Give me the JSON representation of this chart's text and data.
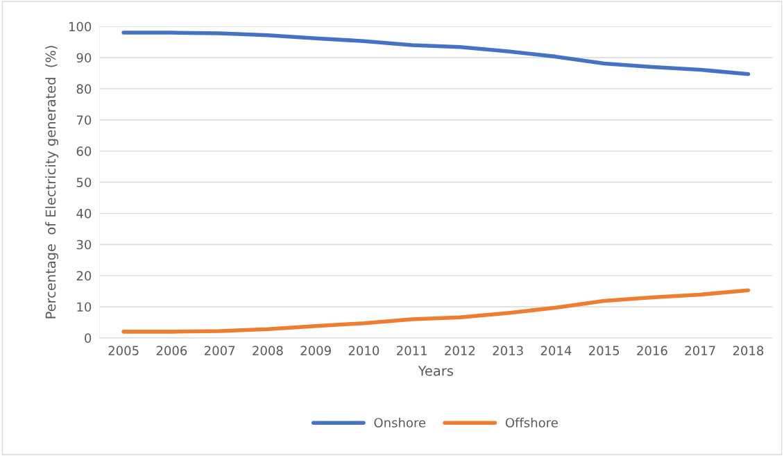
{
  "chart_data": {
    "type": "line",
    "xlabel": "Years",
    "ylabel": "Percentage  of Electricity generated  (%)",
    "categories": [
      "2005",
      "2006",
      "2007",
      "2008",
      "2009",
      "2010",
      "2011",
      "2012",
      "2013",
      "2014",
      "2015",
      "2016",
      "2017",
      "2018"
    ],
    "series": [
      {
        "name": "Onshore",
        "color": "#4472c4",
        "values": [
          98.0,
          98.0,
          97.8,
          97.2,
          96.2,
          95.3,
          94.0,
          93.4,
          92.0,
          90.3,
          88.1,
          87.0,
          86.1,
          84.7
        ]
      },
      {
        "name": "Offshore",
        "color": "#ed7d31",
        "values": [
          2.0,
          2.0,
          2.2,
          2.8,
          3.8,
          4.7,
          6.0,
          6.6,
          8.0,
          9.7,
          11.9,
          13.0,
          13.9,
          15.3
        ]
      }
    ],
    "ylim": [
      0,
      100
    ],
    "yticks": [
      0,
      10,
      20,
      30,
      40,
      50,
      60,
      70,
      80,
      90,
      100
    ],
    "grid": "y",
    "legend": "bottom",
    "marker": "none",
    "line_style": "solid"
  }
}
